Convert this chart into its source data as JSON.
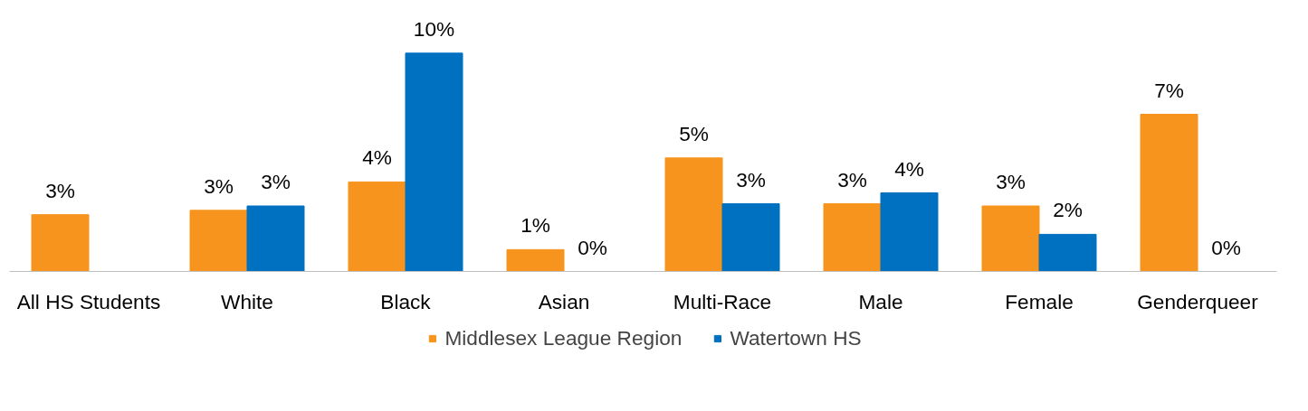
{
  "chart_data": {
    "type": "bar",
    "categories": [
      "All HS Students",
      "White",
      "Black",
      "Asian",
      "Multi-Race",
      "Male",
      "Female",
      "Genderqueer"
    ],
    "series": [
      {
        "name": "Middlesex League Region",
        "color": "#f7941d",
        "values": [
          2.6,
          2.8,
          4.1,
          1.0,
          5.2,
          3.1,
          3.0,
          7.2
        ],
        "value_labels": [
          "3%",
          "3%",
          "4%",
          "1%",
          "5%",
          "3%",
          "3%",
          "7%"
        ]
      },
      {
        "name": "Watertown HS",
        "color": "#0070c0",
        "values": [
          null,
          3.0,
          10.0,
          0,
          3.1,
          3.6,
          1.7,
          0
        ],
        "value_labels": [
          null,
          "3%",
          "10%",
          "0%",
          "3%",
          "4%",
          "2%",
          "0%"
        ]
      }
    ],
    "legend": "bottom"
  }
}
